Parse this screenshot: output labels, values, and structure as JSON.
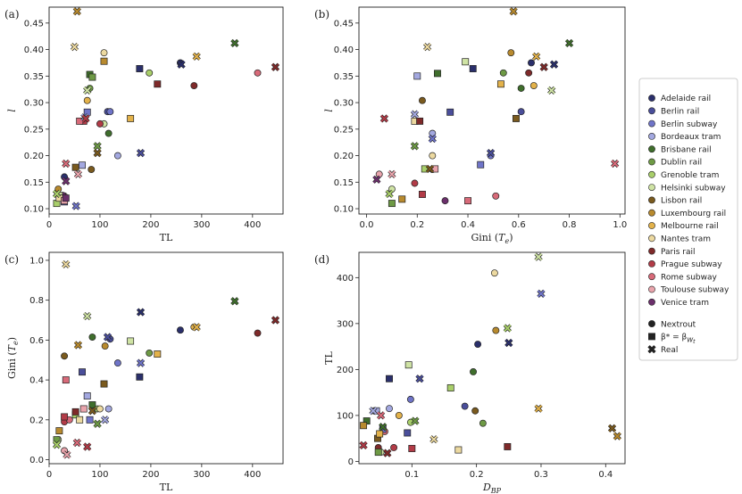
{
  "figure": {
    "background": "#ffffff"
  },
  "legend": {
    "placement": "right",
    "cities": [
      {
        "name": "Adelaide rail",
        "color": "#2a2f6b"
      },
      {
        "name": "Berlin rail",
        "color": "#4a4e9a"
      },
      {
        "name": "Berlin subway",
        "color": "#6f74c8"
      },
      {
        "name": "Bordeaux tram",
        "color": "#a3a8e0"
      },
      {
        "name": "Brisbane rail",
        "color": "#3f6e2c"
      },
      {
        "name": "Dublin rail",
        "color": "#6e9a45"
      },
      {
        "name": "Grenoble tram",
        "color": "#a9cf6a"
      },
      {
        "name": "Helsinki subway",
        "color": "#cfe3a4"
      },
      {
        "name": "Lisbon rail",
        "color": "#7a5a1e"
      },
      {
        "name": "Luxembourg rail",
        "color": "#b88a2e"
      },
      {
        "name": "Melbourne rail",
        "color": "#e3b24a"
      },
      {
        "name": "Nantes tram",
        "color": "#ecd9a0"
      },
      {
        "name": "Paris rail",
        "color": "#7f2a2a"
      },
      {
        "name": "Prague subway",
        "color": "#b23b47"
      },
      {
        "name": "Rome subway",
        "color": "#d86a79"
      },
      {
        "name": "Toulouse subway",
        "color": "#e9a4ac"
      },
      {
        "name": "Venice tram",
        "color": "#6b2f6b"
      }
    ],
    "markers": [
      {
        "name": "Nextrout",
        "shape": "circle"
      },
      {
        "name": "β* = β_W_t",
        "shape": "square"
      },
      {
        "name": "Real",
        "shape": "x"
      }
    ]
  },
  "chart_data": [
    {
      "panel": "(a)",
      "type": "scatter",
      "xlabel": "TL",
      "ylabel": "l",
      "xlim": [
        0,
        460
      ],
      "ylim": [
        0.09,
        0.48
      ],
      "xticks": [
        0,
        100,
        200,
        300,
        400
      ],
      "yticks": [
        0.1,
        0.15,
        0.2,
        0.25,
        0.3,
        0.35,
        0.4,
        0.45
      ],
      "ytick_labels": [
        "0.10",
        "0.15",
        "0.20",
        "0.25",
        "0.30",
        "0.35",
        "0.40",
        "0.45"
      ],
      "points": {
        "circle": [
          [
            258,
            0.375
          ],
          [
            115,
            0.283
          ],
          [
            120,
            0.283
          ],
          [
            135,
            0.2
          ],
          [
            117,
            0.242
          ],
          [
            80,
            0.327
          ],
          [
            197,
            0.356
          ],
          [
            108,
            0.26
          ],
          [
            83,
            0.174
          ],
          [
            18,
            0.137
          ],
          [
            75,
            0.304
          ],
          [
            108,
            0.394
          ],
          [
            285,
            0.332
          ],
          [
            100,
            0.26
          ],
          [
            410,
            0.356
          ],
          [
            30,
            0.124
          ],
          [
            27,
            0.125
          ],
          [
            30,
            0.16
          ]
        ],
        "square": [
          [
            178,
            0.364
          ],
          [
            30,
            0.113
          ],
          [
            75,
            0.282
          ],
          [
            65,
            0.182
          ],
          [
            80,
            0.353
          ],
          [
            85,
            0.348
          ],
          [
            15,
            0.11
          ],
          [
            20,
            0.125
          ],
          [
            52,
            0.178
          ],
          [
            108,
            0.378
          ],
          [
            160,
            0.27
          ],
          [
            20,
            0.12
          ],
          [
            213,
            0.335
          ],
          [
            68,
            0.265
          ],
          [
            60,
            0.265
          ],
          [
            30,
            0.115
          ],
          [
            33,
            0.12
          ]
        ],
        "x": [
          [
            260,
            0.372
          ],
          [
            180,
            0.205
          ],
          [
            53,
            0.105
          ],
          [
            70,
            0.272
          ],
          [
            365,
            0.412
          ],
          [
            95,
            0.218
          ],
          [
            15,
            0.128
          ],
          [
            75,
            0.323
          ],
          [
            95,
            0.205
          ],
          [
            55,
            0.472
          ],
          [
            290,
            0.387
          ],
          [
            50,
            0.405
          ],
          [
            445,
            0.367
          ],
          [
            72,
            0.27
          ],
          [
            33,
            0.185
          ],
          [
            57,
            0.165
          ],
          [
            33,
            0.152
          ]
        ]
      }
    },
    {
      "panel": "(b)",
      "type": "scatter",
      "xlabel": "Gini (T_e)",
      "ylabel": "l",
      "xlim": [
        -0.03,
        1.02
      ],
      "ylim": [
        0.09,
        0.48
      ],
      "xticks": [
        0.0,
        0.2,
        0.4,
        0.6,
        0.8,
        1.0
      ],
      "xtick_labels": [
        "0.0",
        "0.2",
        "0.4",
        "0.6",
        "0.8",
        "1.0"
      ],
      "yticks": [
        0.1,
        0.15,
        0.2,
        0.25,
        0.3,
        0.35,
        0.4,
        0.45
      ],
      "ytick_labels": [
        "0.10",
        "0.15",
        "0.20",
        "0.25",
        "0.30",
        "0.35",
        "0.40",
        "0.45"
      ],
      "points": {
        "circle": [
          [
            0.65,
            0.375
          ],
          [
            0.61,
            0.283
          ],
          [
            0.49,
            0.2
          ],
          [
            0.26,
            0.242
          ],
          [
            0.61,
            0.327
          ],
          [
            0.54,
            0.356
          ],
          [
            0.26,
            0.174
          ],
          [
            0.1,
            0.137
          ],
          [
            0.22,
            0.304
          ],
          [
            0.57,
            0.394
          ],
          [
            0.66,
            0.332
          ],
          [
            0.26,
            0.2
          ],
          [
            0.64,
            0.356
          ],
          [
            0.19,
            0.148
          ],
          [
            0.51,
            0.124
          ],
          [
            0.05,
            0.165
          ],
          [
            0.31,
            0.115
          ]
        ],
        "square": [
          [
            0.42,
            0.364
          ],
          [
            0.33,
            0.282
          ],
          [
            0.45,
            0.183
          ],
          [
            0.2,
            0.35
          ],
          [
            0.28,
            0.355
          ],
          [
            0.1,
            0.11
          ],
          [
            0.23,
            0.175
          ],
          [
            0.39,
            0.377
          ],
          [
            0.59,
            0.27
          ],
          [
            0.14,
            0.118
          ],
          [
            0.53,
            0.335
          ],
          [
            0.19,
            0.265
          ],
          [
            0.21,
            0.265
          ],
          [
            0.22,
            0.127
          ],
          [
            0.4,
            0.115
          ],
          [
            0.27,
            0.175
          ]
        ],
        "x": [
          [
            0.74,
            0.372
          ],
          [
            0.49,
            0.205
          ],
          [
            0.26,
            0.232
          ],
          [
            0.19,
            0.278
          ],
          [
            0.8,
            0.412
          ],
          [
            0.19,
            0.218
          ],
          [
            0.09,
            0.128
          ],
          [
            0.73,
            0.323
          ],
          [
            0.25,
            0.175
          ],
          [
            0.58,
            0.472
          ],
          [
            0.67,
            0.387
          ],
          [
            0.24,
            0.405
          ],
          [
            0.7,
            0.367
          ],
          [
            0.07,
            0.27
          ],
          [
            0.98,
            0.185
          ],
          [
            0.1,
            0.165
          ],
          [
            0.04,
            0.155
          ]
        ]
      }
    },
    {
      "panel": "(c)",
      "type": "scatter",
      "xlabel": "TL",
      "ylabel": "Gini (T_e)",
      "xlim": [
        0,
        460
      ],
      "ylim": [
        -0.02,
        1.04
      ],
      "xticks": [
        0,
        100,
        200,
        300,
        400
      ],
      "yticks": [
        0.0,
        0.2,
        0.4,
        0.6,
        0.8,
        1.0
      ],
      "ytick_labels": [
        "0.0",
        "0.2",
        "0.4",
        "0.6",
        "0.8",
        "1.0"
      ],
      "points": {
        "circle": [
          [
            258,
            0.65
          ],
          [
            120,
            0.605
          ],
          [
            135,
            0.485
          ],
          [
            117,
            0.255
          ],
          [
            85,
            0.615
          ],
          [
            197,
            0.535
          ],
          [
            95,
            0.255
          ],
          [
            18,
            0.1
          ],
          [
            30,
            0.52
          ],
          [
            110,
            0.57
          ],
          [
            285,
            0.665
          ],
          [
            100,
            0.255
          ],
          [
            410,
            0.635
          ],
          [
            30,
            0.19
          ],
          [
            40,
            0.2
          ],
          [
            30,
            0.045
          ]
        ],
        "square": [
          [
            178,
            0.415
          ],
          [
            65,
            0.44
          ],
          [
            80,
            0.2
          ],
          [
            75,
            0.32
          ],
          [
            85,
            0.275
          ],
          [
            15,
            0.1
          ],
          [
            52,
            0.225
          ],
          [
            160,
            0.595
          ],
          [
            108,
            0.38
          ],
          [
            20,
            0.145
          ],
          [
            213,
            0.53
          ],
          [
            60,
            0.2
          ],
          [
            52,
            0.24
          ],
          [
            30,
            0.215
          ],
          [
            33,
            0.4
          ],
          [
            68,
            0.255
          ]
        ],
        "x": [
          [
            180,
            0.74
          ],
          [
            115,
            0.615
          ],
          [
            180,
            0.485
          ],
          [
            110,
            0.2
          ],
          [
            365,
            0.795
          ],
          [
            95,
            0.18
          ],
          [
            15,
            0.075
          ],
          [
            75,
            0.72
          ],
          [
            85,
            0.245
          ],
          [
            57,
            0.575
          ],
          [
            290,
            0.665
          ],
          [
            33,
            0.98
          ],
          [
            445,
            0.7
          ],
          [
            75,
            0.065
          ],
          [
            55,
            0.085
          ],
          [
            35,
            0.025
          ]
        ]
      }
    },
    {
      "panel": "(d)",
      "type": "scatter",
      "xlabel": "D_BP",
      "ylabel": "TL",
      "xlim": [
        0.018,
        0.43
      ],
      "ylim": [
        -5,
        455
      ],
      "xticks": [
        0.1,
        0.2,
        0.3,
        0.4
      ],
      "xtick_labels": [
        "0.1",
        "0.2",
        "0.3",
        "0.4"
      ],
      "yticks": [
        0,
        100,
        200,
        300,
        400
      ],
      "points": {
        "circle": [
          [
            0.202,
            255
          ],
          [
            0.182,
            120
          ],
          [
            0.098,
            135
          ],
          [
            0.065,
            115
          ],
          [
            0.195,
            195
          ],
          [
            0.21,
            83
          ],
          [
            0.098,
            85
          ],
          [
            0.052,
            20
          ],
          [
            0.198,
            110
          ],
          [
            0.23,
            285
          ],
          [
            0.08,
            100
          ],
          [
            0.228,
            410
          ],
          [
            0.048,
            30
          ],
          [
            0.072,
            30
          ],
          [
            0.058,
            65
          ]
        ],
        "square": [
          [
            0.065,
            180
          ],
          [
            0.093,
            62
          ],
          [
            0.055,
            70
          ],
          [
            0.045,
            110
          ],
          [
            0.03,
            88
          ],
          [
            0.048,
            20
          ],
          [
            0.16,
            160
          ],
          [
            0.095,
            210
          ],
          [
            0.047,
            50
          ],
          [
            0.025,
            78
          ],
          [
            0.05,
            60
          ],
          [
            0.172,
            25
          ],
          [
            0.248,
            32
          ],
          [
            0.1,
            28
          ]
        ],
        "x": [
          [
            0.25,
            258
          ],
          [
            0.112,
            180
          ],
          [
            0.3,
            365
          ],
          [
            0.04,
            110
          ],
          [
            0.055,
            75
          ],
          [
            0.105,
            88
          ],
          [
            0.248,
            290
          ],
          [
            0.296,
            445
          ],
          [
            0.41,
            72
          ],
          [
            0.418,
            55
          ],
          [
            0.296,
            115
          ],
          [
            0.134,
            48
          ],
          [
            0.062,
            18
          ],
          [
            0.025,
            35
          ],
          [
            0.052,
            100
          ]
        ]
      }
    }
  ]
}
